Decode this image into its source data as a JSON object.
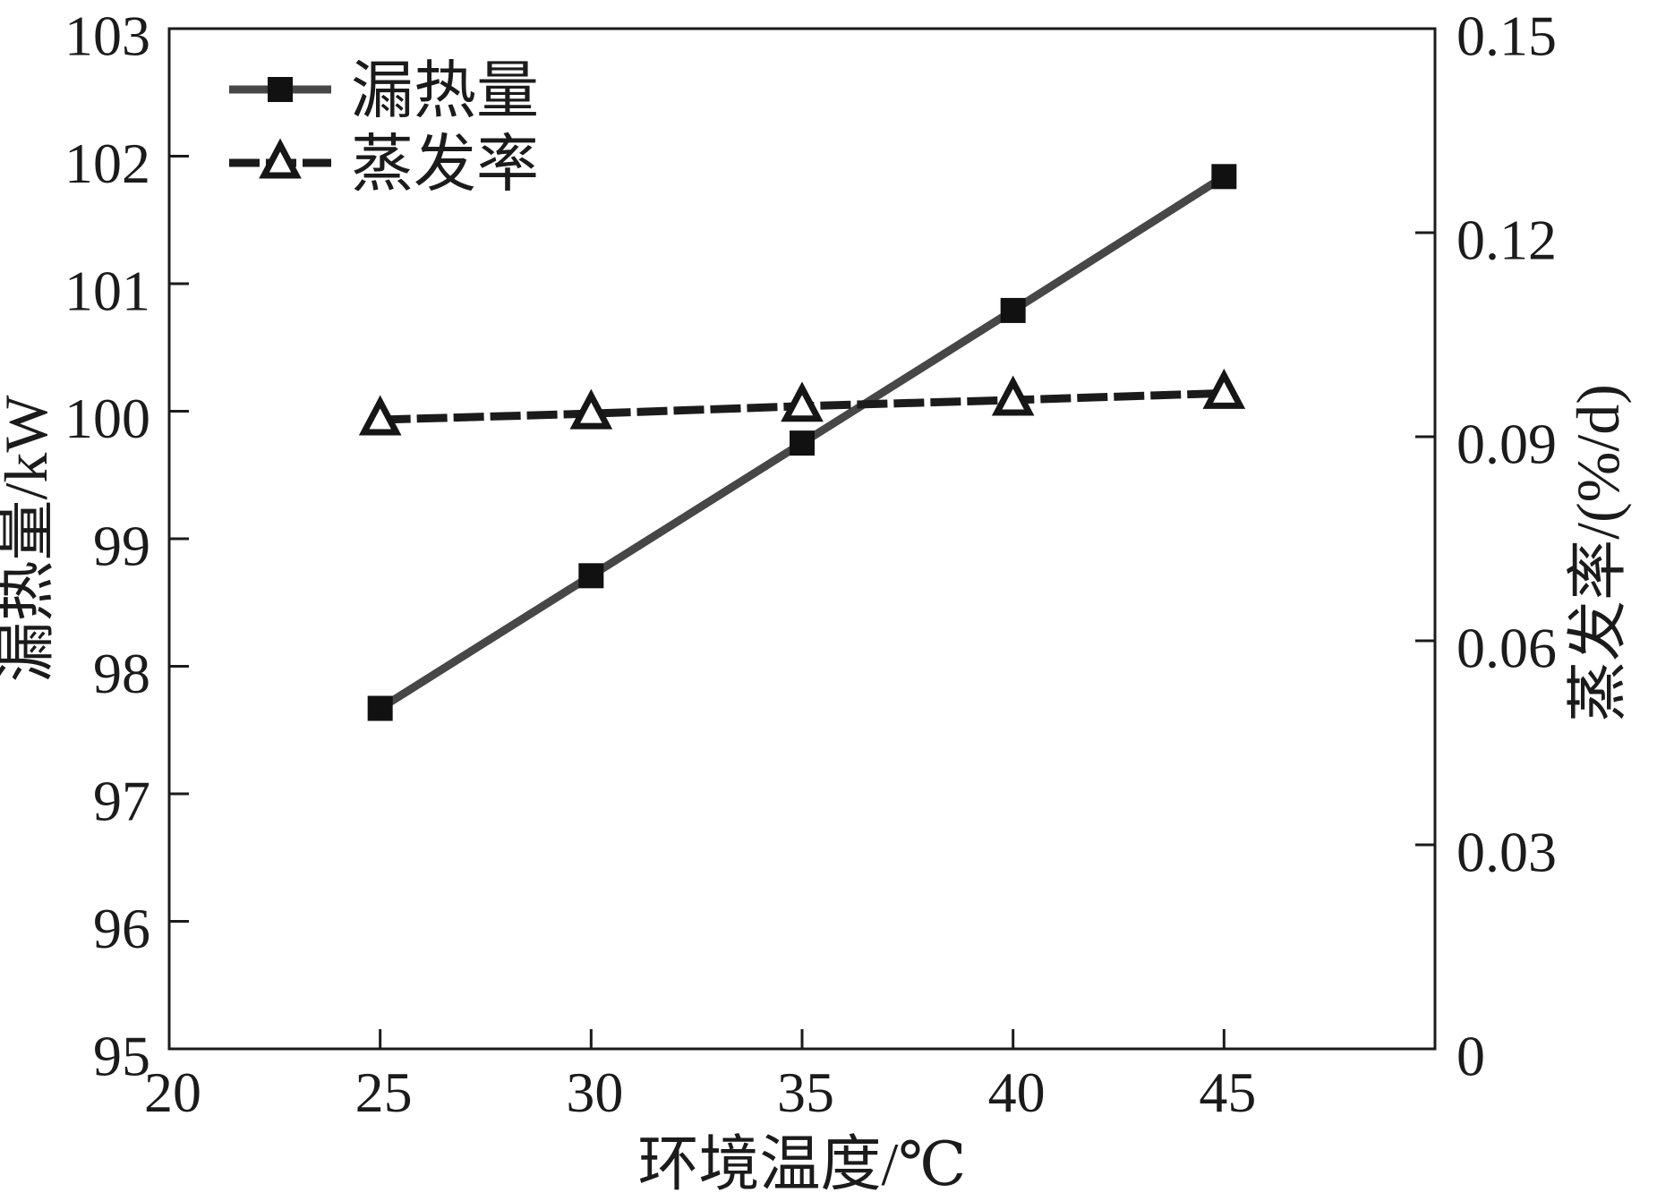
{
  "chart_data": {
    "type": "line",
    "title": "",
    "background": "#ffffff",
    "grid": false,
    "x": [
      25,
      30,
      35,
      40,
      45
    ],
    "series": [
      {
        "name": "漏热量",
        "axis": "left",
        "values": [
          97.67,
          98.71,
          99.75,
          100.79,
          101.84
        ],
        "marker": "filled-square",
        "marker_color": "#111111",
        "line_style": "solid",
        "line_color": "#474747"
      },
      {
        "name": "蒸发率",
        "axis": "right",
        "values": [
          0.0925,
          0.0934,
          0.0945,
          0.0954,
          0.0964
        ],
        "marker": "open-triangle",
        "marker_color": "#161616",
        "line_style": "dashed",
        "line_color": "#1b1b1b"
      }
    ],
    "x_axis": {
      "label": "环境温度/℃",
      "range": [
        20,
        50
      ],
      "tick_values": [
        20,
        25,
        30,
        35,
        40,
        45
      ],
      "tick_labels": [
        "20",
        "25",
        "30",
        "35",
        "40",
        "45"
      ],
      "tick_marks": [
        25,
        30,
        35,
        40,
        45
      ]
    },
    "left_y_axis": {
      "label": "漏热量/kW",
      "range": [
        95,
        103
      ],
      "tick_values": [
        95,
        96,
        97,
        98,
        99,
        100,
        101,
        102,
        103
      ],
      "tick_labels": [
        "95",
        "96",
        "97",
        "98",
        "99",
        "100",
        "101",
        "102",
        "103"
      ],
      "tick_marks": [
        96,
        97,
        98,
        99,
        100,
        101,
        102
      ]
    },
    "right_y_axis": {
      "label": "蒸发率/(%/d)",
      "range": [
        0,
        0.15
      ],
      "tick_values": [
        0,
        0.03,
        0.06,
        0.09,
        0.12,
        0.15
      ],
      "tick_labels": [
        "0",
        "0.03",
        "0.06",
        "0.09",
        "0.12",
        "0.15"
      ],
      "tick_marks": [
        0.03,
        0.06,
        0.09,
        0.12
      ]
    },
    "legend": {
      "position": "top-left-inside",
      "entries": [
        "漏热量",
        "蒸发率"
      ]
    },
    "frame_color": "#1b1b1b"
  }
}
